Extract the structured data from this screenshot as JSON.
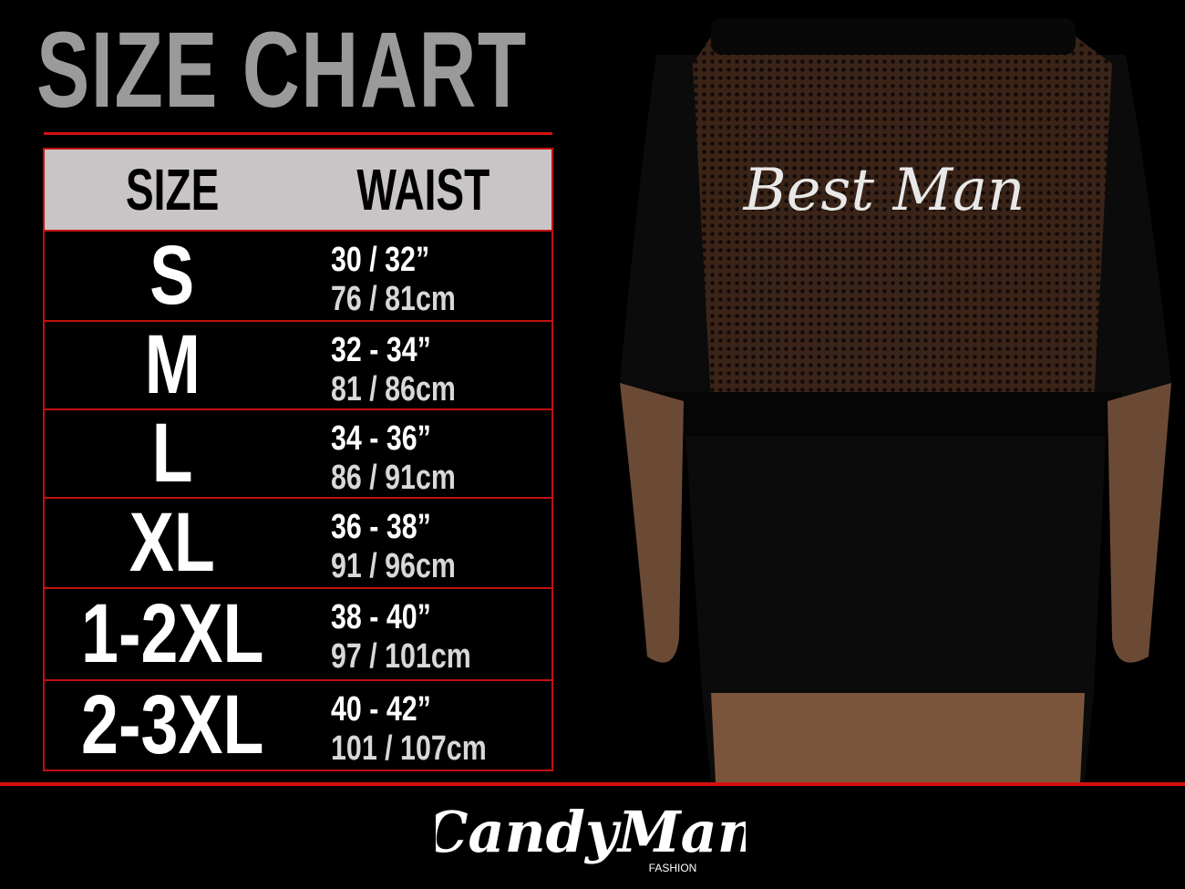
{
  "title": "SIZE CHART",
  "table": {
    "headers": {
      "size": "SIZE",
      "waist": "WAIST"
    },
    "rows": [
      {
        "size": "S",
        "waist_in": "30 / 32”",
        "waist_cm": "76 / 81cm"
      },
      {
        "size": "M",
        "waist_in": "32 - 34”",
        "waist_cm": "81 / 86cm"
      },
      {
        "size": "L",
        "waist_in": "34 - 36”",
        "waist_cm": "86 / 91cm"
      },
      {
        "size": "XL",
        "waist_in": "36 - 38”",
        "waist_cm": "91 / 96cm"
      },
      {
        "size": "1-2XL",
        "waist_in": "38 - 40”",
        "waist_cm": "97 / 101cm"
      },
      {
        "size": "2-3XL",
        "waist_in": "40 - 42”",
        "waist_cm": "101 / 107cm"
      }
    ]
  },
  "garment_print": "Best Man",
  "brand": {
    "name": "CandyMan",
    "tagline": "FASHION"
  },
  "colors": {
    "background": "#000000",
    "accent_red": "#d41010",
    "header_grey": "#c9c5c6",
    "title_grey": "#9a9a9a"
  }
}
